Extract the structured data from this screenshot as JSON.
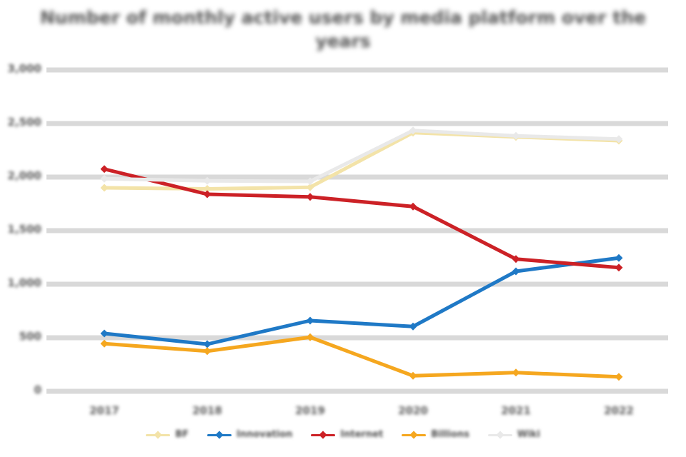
{
  "title": {
    "line1": "Number of monthly active users by media platform over the",
    "line2": "years"
  },
  "colors": {
    "background": "#ffffff",
    "gridline": "#d9d9d9",
    "title_text": "#575757",
    "axis_text": "#595959",
    "series_cream": "#f3e3a8",
    "series_blue": "#1f79c6",
    "series_red": "#cc2126",
    "series_orange": "#f5a71f",
    "series_white": "#e9e9e9"
  },
  "chart_data": {
    "type": "line",
    "x": [
      "2017",
      "2018",
      "2019",
      "2020",
      "2021",
      "2022"
    ],
    "series": [
      {
        "name": "BF",
        "color": "#f3e3a8",
        "values": [
          1900,
          1890,
          1905,
          2415,
          2375,
          2340
        ]
      },
      {
        "name": "Innovation",
        "color": "#1f79c6",
        "values": [
          540,
          440,
          660,
          605,
          1120,
          1245
        ]
      },
      {
        "name": "Internet",
        "color": "#cc2126",
        "values": [
          2075,
          1840,
          1815,
          1725,
          1235,
          1155
        ]
      },
      {
        "name": "Billions",
        "color": "#f5a71f",
        "values": [
          445,
          375,
          505,
          145,
          175,
          135
        ]
      },
      {
        "name": "Wiki",
        "color": "#e9e9e9",
        "values": [
          1985,
          1965,
          1960,
          2435,
          2385,
          2355
        ]
      }
    ],
    "title": "Number of monthly active users by media platform over the years",
    "xlabel": "",
    "ylabel": "",
    "ylim": [
      0,
      3000
    ],
    "ytick_step": 500,
    "yticks": [
      "0",
      "500",
      "1,000",
      "1,500",
      "2,000",
      "2,500",
      "3,000"
    ],
    "grid": "horizontal",
    "legend_position": "bottom",
    "marker": "diamond"
  }
}
